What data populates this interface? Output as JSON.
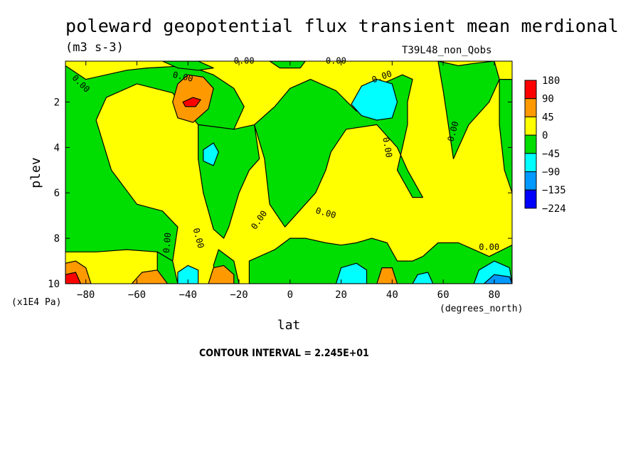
{
  "title": "poleward geopotential flux transient mean merdional",
  "units": "(m3 s-3)",
  "run_label": "T39L48_non_Qobs",
  "contour_interval": "CONTOUR INTERVAL = 2.245E+01",
  "chart_data": {
    "type": "heatmap",
    "title": "poleward geopotential flux transient mean merdional",
    "subtitle": "(m3 s-3)",
    "xlabel": "lat",
    "x_units": "(degrees_north)",
    "ylabel": "plev",
    "y_units": "(x1E4 Pa)",
    "xlim": [
      -88,
      87
    ],
    "ylim": [
      10,
      0.2
    ],
    "x_ticks": [
      -80,
      -60,
      -40,
      -20,
      0,
      20,
      40,
      60,
      80
    ],
    "x_tick_labels": [
      "−80",
      "−60",
      "−40",
      "−20",
      "0",
      "20",
      "40",
      "60",
      "80"
    ],
    "y_ticks": [
      2,
      4,
      6,
      8,
      10
    ],
    "y_tick_labels": [
      "2",
      "4",
      "6",
      "8",
      "10"
    ],
    "contour_labels": [
      "0.00",
      "0.00",
      "0.00",
      "0.00",
      "0.00",
      "0.00",
      "0.00",
      "0.00",
      "0.00",
      "0.00",
      "0.00",
      "0.00"
    ],
    "legend": {
      "placement": "right",
      "levels": [
        "180",
        "90",
        "45",
        "0",
        "−45",
        "−90",
        "−135",
        "−224"
      ],
      "colors": [
        "#ff0000",
        "#ff9900",
        "#ffff00",
        "#00dd00",
        "#00ffff",
        "#0099ff",
        "#0000ff"
      ]
    },
    "regions": [
      {
        "level": "-45",
        "color": "#00dd00",
        "points": [
          [
            -88,
            0.4
          ],
          [
            -80,
            1.0
          ],
          [
            -72,
            0.8
          ],
          [
            -64,
            0.6
          ],
          [
            -56,
            0.5
          ],
          [
            -40,
            0.4
          ],
          [
            -30,
            0.8
          ],
          [
            -22,
            1.4
          ],
          [
            -18,
            2.2
          ],
          [
            -22,
            3.2
          ],
          [
            -36,
            3.0
          ],
          [
            -46,
            1.6
          ],
          [
            -60,
            1.2
          ],
          [
            -72,
            1.8
          ],
          [
            -76,
            2.8
          ],
          [
            -70,
            5.0
          ],
          [
            -60,
            6.5
          ],
          [
            -50,
            6.8
          ],
          [
            -44,
            7.5
          ],
          [
            -46,
            9.0
          ],
          [
            -52,
            8.6
          ],
          [
            -64,
            8.5
          ],
          [
            -76,
            8.6
          ],
          [
            -88,
            8.6
          ]
        ]
      },
      {
        "level": "-45",
        "color": "#00dd00",
        "points": [
          [
            -36,
            3.0
          ],
          [
            -22,
            3.2
          ],
          [
            -14,
            3.0
          ],
          [
            -12,
            4.5
          ],
          [
            -16,
            5.0
          ],
          [
            -20,
            6.0
          ],
          [
            -24,
            7.5
          ],
          [
            -26,
            8.0
          ],
          [
            -30,
            7.6
          ],
          [
            -34,
            6.0
          ],
          [
            -36,
            4.5
          ]
        ]
      },
      {
        "level": "-45",
        "color": "#00dd00",
        "points": [
          [
            -14,
            3.0
          ],
          [
            -6,
            2.2
          ],
          [
            0,
            1.4
          ],
          [
            8,
            1.0
          ],
          [
            18,
            1.5
          ],
          [
            26,
            2.4
          ],
          [
            30,
            1.6
          ],
          [
            36,
            1.2
          ],
          [
            44,
            0.8
          ],
          [
            48,
            1.0
          ],
          [
            46,
            2.0
          ],
          [
            46,
            3.0
          ],
          [
            42,
            5.0
          ],
          [
            48,
            6.2
          ],
          [
            52,
            6.2
          ],
          [
            46,
            5.0
          ],
          [
            42,
            4.0
          ],
          [
            34,
            3.0
          ],
          [
            22,
            3.2
          ],
          [
            16,
            4.2
          ],
          [
            14,
            5.0
          ],
          [
            10,
            6.0
          ],
          [
            6,
            6.5
          ],
          [
            2,
            7.0
          ],
          [
            -2,
            7.5
          ],
          [
            -8,
            6.5
          ],
          [
            -10,
            4.5
          ]
        ]
      },
      {
        "level": "-45",
        "color": "#00dd00",
        "points": [
          [
            -28,
            8.5
          ],
          [
            -22,
            9.0
          ],
          [
            -20,
            10
          ],
          [
            -28,
            10
          ],
          [
            -30,
            9.2
          ]
        ]
      },
      {
        "level": "-45",
        "color": "#00dd00",
        "points": [
          [
            -16,
            9.0
          ],
          [
            -6,
            8.5
          ],
          [
            0,
            8.0
          ],
          [
            6,
            8.0
          ],
          [
            14,
            8.2
          ],
          [
            20,
            8.3
          ],
          [
            26,
            8.2
          ],
          [
            32,
            8.0
          ],
          [
            38,
            8.2
          ],
          [
            42,
            9.0
          ],
          [
            48,
            9.0
          ],
          [
            52,
            8.8
          ],
          [
            58,
            8.2
          ],
          [
            66,
            8.2
          ],
          [
            72,
            8.5
          ],
          [
            78,
            8.8
          ],
          [
            87,
            8.3
          ],
          [
            87,
            10
          ],
          [
            -16,
            10
          ]
        ]
      },
      {
        "level": "-45",
        "color": "#00dd00",
        "points": [
          [
            -52,
            8.6
          ],
          [
            -46,
            9.0
          ],
          [
            -44,
            10
          ],
          [
            -52,
            10
          ]
        ]
      },
      {
        "level": "-45",
        "color": "#00dd00",
        "points": [
          [
            58,
            0.2
          ],
          [
            66,
            0.4
          ],
          [
            72,
            0.3
          ],
          [
            80,
            0.2
          ],
          [
            82,
            1.0
          ],
          [
            78,
            2.0
          ],
          [
            74,
            2.5
          ],
          [
            70,
            3.0
          ],
          [
            66,
            4.0
          ],
          [
            64,
            4.5
          ],
          [
            62,
            3.0
          ],
          [
            60,
            1.5
          ]
        ]
      },
      {
        "level": "-45",
        "color": "#00dd00",
        "points": [
          [
            82,
            1.0
          ],
          [
            87,
            1.0
          ],
          [
            87,
            6.0
          ],
          [
            84,
            5.0
          ],
          [
            82,
            3.0
          ]
        ]
      },
      {
        "level": "-45",
        "color": "#00dd00",
        "points": [
          [
            -50,
            0.2
          ],
          [
            -36,
            0.2
          ],
          [
            -30,
            0.5
          ],
          [
            -36,
            0.6
          ],
          [
            -44,
            0.5
          ]
        ]
      },
      {
        "level": "-45",
        "color": "#00dd00",
        "points": [
          [
            -8,
            0.2
          ],
          [
            6,
            0.2
          ],
          [
            4,
            0.5
          ],
          [
            -4,
            0.5
          ]
        ]
      },
      {
        "level": "-90",
        "color": "#00ffff",
        "points": [
          [
            24,
            2.1
          ],
          [
            28,
            1.3
          ],
          [
            34,
            1.0
          ],
          [
            40,
            1.2
          ],
          [
            42,
            2.0
          ],
          [
            40,
            2.7
          ],
          [
            34,
            2.8
          ],
          [
            28,
            2.6
          ]
        ]
      },
      {
        "level": "-90",
        "color": "#00ffff",
        "points": [
          [
            -34,
            4.1
          ],
          [
            -30,
            3.8
          ],
          [
            -28,
            4.2
          ],
          [
            -30,
            4.8
          ],
          [
            -34,
            4.6
          ]
        ]
      },
      {
        "level": "-90",
        "color": "#00ffff",
        "points": [
          [
            -44,
            10
          ],
          [
            -44,
            9.5
          ],
          [
            -40,
            9.2
          ],
          [
            -36,
            9.4
          ],
          [
            -36,
            10
          ]
        ]
      },
      {
        "level": "-90",
        "color": "#00ffff",
        "points": [
          [
            18,
            10
          ],
          [
            20,
            9.3
          ],
          [
            26,
            9.1
          ],
          [
            30,
            9.4
          ],
          [
            30,
            10
          ]
        ]
      },
      {
        "level": "-90",
        "color": "#00ffff",
        "points": [
          [
            48,
            10
          ],
          [
            50,
            9.6
          ],
          [
            54,
            9.5
          ],
          [
            56,
            10
          ]
        ]
      },
      {
        "level": "-90",
        "color": "#00ffff",
        "points": [
          [
            72,
            10
          ],
          [
            74,
            9.4
          ],
          [
            80,
            9.0
          ],
          [
            86,
            9.3
          ],
          [
            87,
            10
          ]
        ]
      },
      {
        "level": "-135",
        "color": "#0099ff",
        "points": [
          [
            76,
            10
          ],
          [
            80,
            9.6
          ],
          [
            86,
            9.7
          ],
          [
            87,
            10
          ]
        ]
      },
      {
        "level": "45",
        "color": "#ff9900",
        "points": [
          [
            -46,
            2.0
          ],
          [
            -44,
            1.2
          ],
          [
            -40,
            0.8
          ],
          [
            -34,
            0.9
          ],
          [
            -30,
            1.4
          ],
          [
            -32,
            2.3
          ],
          [
            -38,
            2.9
          ],
          [
            -44,
            2.7
          ]
        ]
      },
      {
        "level": "45",
        "color": "#ff9900",
        "points": [
          [
            -88,
            10
          ],
          [
            -88,
            9.1
          ],
          [
            -84,
            9.0
          ],
          [
            -80,
            9.3
          ],
          [
            -78,
            10
          ]
        ]
      },
      {
        "level": "45",
        "color": "#ff9900",
        "points": [
          [
            -62,
            10
          ],
          [
            -58,
            9.5
          ],
          [
            -52,
            9.4
          ],
          [
            -48,
            10
          ]
        ]
      },
      {
        "level": "45",
        "color": "#ff9900",
        "points": [
          [
            -32,
            10
          ],
          [
            -30,
            9.3
          ],
          [
            -26,
            9.2
          ],
          [
            -22,
            9.6
          ],
          [
            -22,
            10
          ]
        ]
      },
      {
        "level": "45",
        "color": "#ff9900",
        "points": [
          [
            34,
            10
          ],
          [
            36,
            9.3
          ],
          [
            40,
            9.3
          ],
          [
            42,
            10
          ]
        ]
      },
      {
        "level": "90",
        "color": "#ff0000",
        "points": [
          [
            -42,
            2.0
          ],
          [
            -38,
            1.8
          ],
          [
            -35,
            1.9
          ],
          [
            -37,
            2.2
          ],
          [
            -41,
            2.2
          ]
        ]
      },
      {
        "level": "90",
        "color": "#ff0000",
        "points": [
          [
            -88,
            10
          ],
          [
            -88,
            9.6
          ],
          [
            -84,
            9.5
          ],
          [
            -82,
            10
          ]
        ]
      }
    ]
  }
}
